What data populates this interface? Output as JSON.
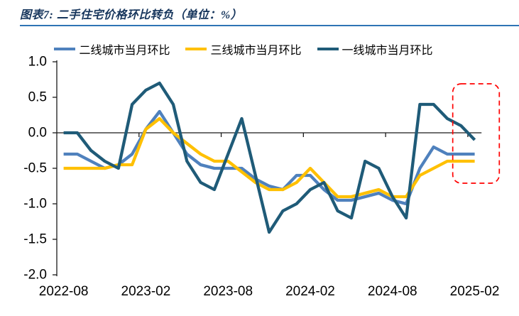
{
  "title": "图表7: 二手住宅价格环比转负（单位：%）",
  "colors": {
    "title_text": "#17365D",
    "title_rule": "#2E74B5",
    "axis": "#1a1a1a",
    "highlight": "#FF0000",
    "tier2_blue": "#4F81BD",
    "tier3_yellow": "#FFC000",
    "tier1_darkblue": "#1F5B78"
  },
  "legend": [
    {
      "label": "二线城市当月环比",
      "color": "#4F81BD"
    },
    {
      "label": "三线城市当月环比",
      "color": "#FFC000"
    },
    {
      "label": "一线城市当月环比",
      "color": "#1F5B78"
    }
  ],
  "chart_data": {
    "type": "line",
    "title": "图表7: 二手住宅价格环比转负（单位：%）",
    "unit": "%",
    "grid": false,
    "legend_position": "top",
    "ylim": [
      -2.0,
      1.0
    ],
    "y_ticks": [
      1.0,
      0.5,
      0.0,
      -0.5,
      -1.0,
      -1.5,
      -2.0
    ],
    "y_tick_labels": [
      "1.0",
      "0.5",
      "0.0",
      "-0.5",
      "-1.0",
      "-1.5",
      "-2.0"
    ],
    "x_tick_labels": [
      "2022-08",
      "2023-02",
      "2023-08",
      "2024-02",
      "2024-08",
      "2025-02"
    ],
    "x_tick_positions": [
      0,
      6,
      12,
      18,
      24,
      30
    ],
    "categories": [
      "2022-08",
      "2022-09",
      "2022-10",
      "2022-11",
      "2022-12",
      "2023-01",
      "2023-02",
      "2023-03",
      "2023-04",
      "2023-05",
      "2023-06",
      "2023-07",
      "2023-08",
      "2023-09",
      "2023-10",
      "2023-11",
      "2023-12",
      "2024-01",
      "2024-02",
      "2024-03",
      "2024-04",
      "2024-05",
      "2024-06",
      "2024-07",
      "2024-08",
      "2024-09",
      "2024-10",
      "2024-11",
      "2024-12",
      "2025-01",
      "2025-02"
    ],
    "series": [
      {
        "name": "二线城市当月环比",
        "color": "#4F81BD",
        "values": [
          -0.3,
          -0.3,
          -0.4,
          -0.5,
          -0.45,
          -0.3,
          0.05,
          0.3,
          0.0,
          -0.3,
          -0.45,
          -0.5,
          -0.5,
          -0.5,
          -0.65,
          -0.75,
          -0.8,
          -0.6,
          -0.6,
          -0.8,
          -0.95,
          -0.95,
          -0.9,
          -0.85,
          -0.95,
          -1.0,
          -0.5,
          -0.2,
          -0.3,
          -0.3,
          -0.3
        ]
      },
      {
        "name": "三线城市当月环比",
        "color": "#FFC000",
        "values": [
          -0.5,
          -0.5,
          -0.5,
          -0.5,
          -0.45,
          -0.45,
          0.05,
          0.2,
          0.0,
          -0.15,
          -0.3,
          -0.4,
          -0.4,
          -0.55,
          -0.7,
          -0.8,
          -0.8,
          -0.7,
          -0.5,
          -0.7,
          -0.9,
          -0.9,
          -0.85,
          -0.8,
          -0.9,
          -0.9,
          -0.6,
          -0.5,
          -0.4,
          -0.4,
          -0.4
        ]
      },
      {
        "name": "一线城市当月环比",
        "color": "#1F5B78",
        "values": [
          0.0,
          0.0,
          -0.25,
          -0.4,
          -0.5,
          0.4,
          0.6,
          0.7,
          0.4,
          -0.4,
          -0.7,
          -0.8,
          -0.3,
          0.2,
          -0.6,
          -1.4,
          -1.1,
          -1.0,
          -0.8,
          -0.7,
          -1.1,
          -1.2,
          -0.4,
          -0.5,
          -0.9,
          -1.2,
          0.4,
          0.4,
          0.2,
          0.1,
          -0.1
        ]
      }
    ],
    "annotations": {
      "highlight_box": {
        "covers_months": [
          "2024-12",
          "2025-01",
          "2025-02"
        ],
        "from_month_index": 28.9,
        "to_month_index": 32.3,
        "top_value": 0.69,
        "bottom_value": -0.71,
        "color": "#FF0000",
        "style": "dashed-rounded"
      }
    }
  }
}
